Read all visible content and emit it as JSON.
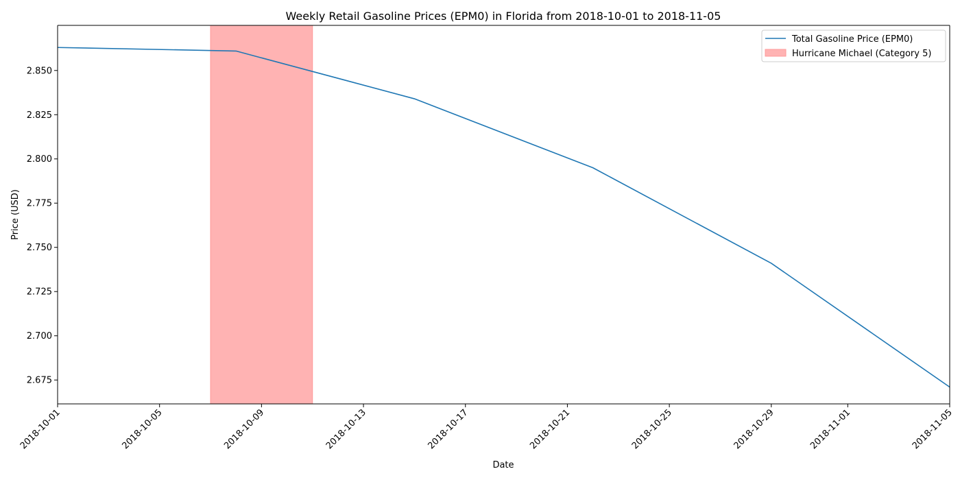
{
  "chart_data": {
    "type": "line",
    "title": "Weekly Retail Gasoline Prices (EPM0) in Florida from 2018-10-01 to 2018-11-05",
    "xlabel": "Date",
    "ylabel": "Price (USD)",
    "xlim": [
      "2018-10-01",
      "2018-11-05"
    ],
    "ylim": [
      2.6615,
      2.8755
    ],
    "x_ticks": [
      "2018-10-01",
      "2018-10-05",
      "2018-10-09",
      "2018-10-13",
      "2018-10-17",
      "2018-10-21",
      "2018-10-25",
      "2018-10-29",
      "2018-11-01",
      "2018-11-05"
    ],
    "y_ticks": [
      "2.675",
      "2.700",
      "2.725",
      "2.750",
      "2.775",
      "2.800",
      "2.825",
      "2.850"
    ],
    "series": [
      {
        "name": "Total Gasoline Price (EPM0)",
        "color": "#1f77b4",
        "x": [
          "2018-10-01",
          "2018-10-08",
          "2018-10-15",
          "2018-10-22",
          "2018-10-29",
          "2018-11-05"
        ],
        "values": [
          2.863,
          2.861,
          2.834,
          2.795,
          2.741,
          2.671
        ]
      }
    ],
    "shaded_regions": [
      {
        "name": "Hurricane Michael (Category 5)",
        "start": "2018-10-07",
        "end": "2018-10-11",
        "color": "#ff9999"
      }
    ],
    "legend": {
      "position": "top-right",
      "entries": [
        "Total Gasoline Price (EPM0)",
        "Hurricane Michael (Category 5)"
      ]
    },
    "grid": false
  }
}
